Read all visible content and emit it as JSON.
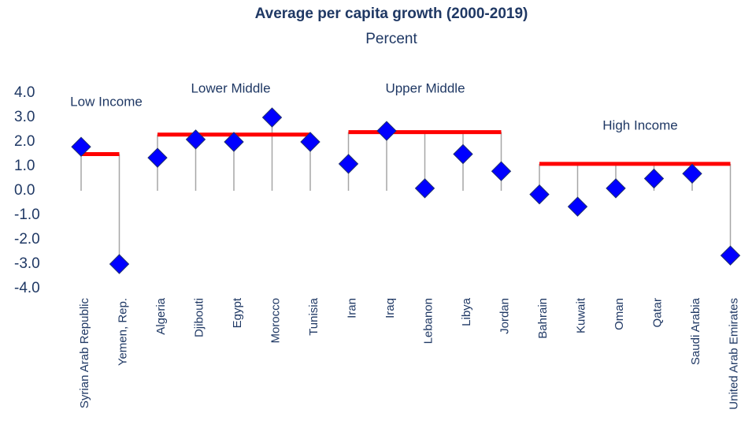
{
  "chart_data": {
    "type": "dot",
    "title": "Average per capita growth (2000-2019)",
    "subtitle": "Percent",
    "marker_color": "#0000ff",
    "average_color": "#ff0000",
    "ylim": [
      -4,
      4
    ],
    "yticks": [
      {
        "value": 4,
        "label": "4.0"
      },
      {
        "value": 3,
        "label": "3.0"
      },
      {
        "value": 2,
        "label": "2.0"
      },
      {
        "value": 1,
        "label": "1.0"
      },
      {
        "value": 0,
        "label": "0.0"
      },
      {
        "value": -1,
        "label": "-1.0"
      },
      {
        "value": -2,
        "label": "-2.0"
      },
      {
        "value": -3,
        "label": "-3.0"
      },
      {
        "value": -4,
        "label": "-4.0"
      }
    ],
    "groups": [
      {
        "name": "Low Income",
        "average": 1.5,
        "categories": [
          "Syrian Arab Republic",
          "Yemen, Rep."
        ],
        "values": [
          1.8,
          -3.0
        ]
      },
      {
        "name": "Lower Middle",
        "average": 2.3,
        "categories": [
          "Algeria",
          "Djibouti",
          "Egypt",
          "Morocco",
          "Tunisia"
        ],
        "values": [
          1.35,
          2.1,
          2.0,
          3.0,
          2.0
        ]
      },
      {
        "name": "Upper Middle",
        "average": 2.4,
        "categories": [
          "Iran",
          "Iraq",
          "Lebanon",
          "Libya",
          "Jordan"
        ],
        "values": [
          1.1,
          2.45,
          0.1,
          1.5,
          0.8
        ]
      },
      {
        "name": "High Income",
        "average": 1.1,
        "categories": [
          "Bahrain",
          "Kuwait",
          "Oman",
          "Qatar",
          "Saudi Arabia",
          "United Arab Emirates"
        ],
        "values": [
          -0.15,
          -0.65,
          0.1,
          0.5,
          0.7,
          -2.65
        ]
      }
    ]
  }
}
